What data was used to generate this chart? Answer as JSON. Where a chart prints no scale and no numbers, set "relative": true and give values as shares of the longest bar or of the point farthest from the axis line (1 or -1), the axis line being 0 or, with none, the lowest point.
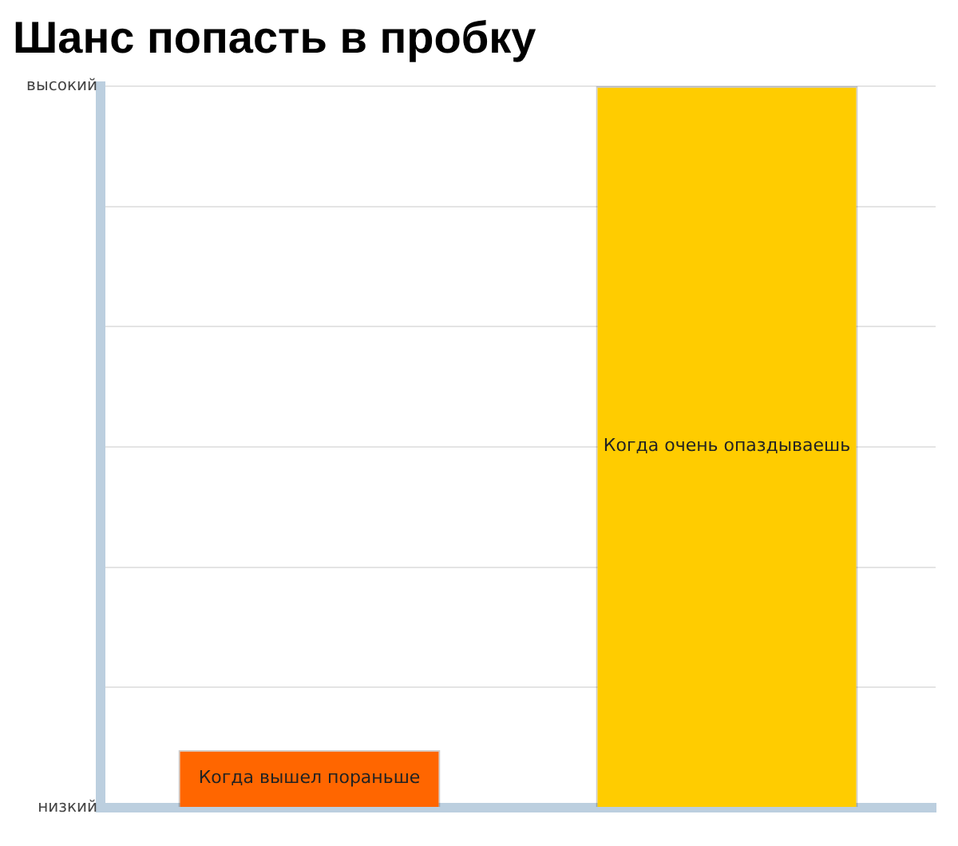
{
  "chart_data": {
    "type": "bar",
    "title": "Шанс попасть в пробку",
    "relative": true,
    "grid": "y",
    "categories": [
      "Когда вышел пораньше",
      "Когда очень опаздываешь"
    ],
    "values": [
      0.08,
      1
    ],
    "colors": [
      "#ff6600",
      "#ffcc00"
    ],
    "annotations": [
      "высокий",
      "низкий"
    ]
  }
}
